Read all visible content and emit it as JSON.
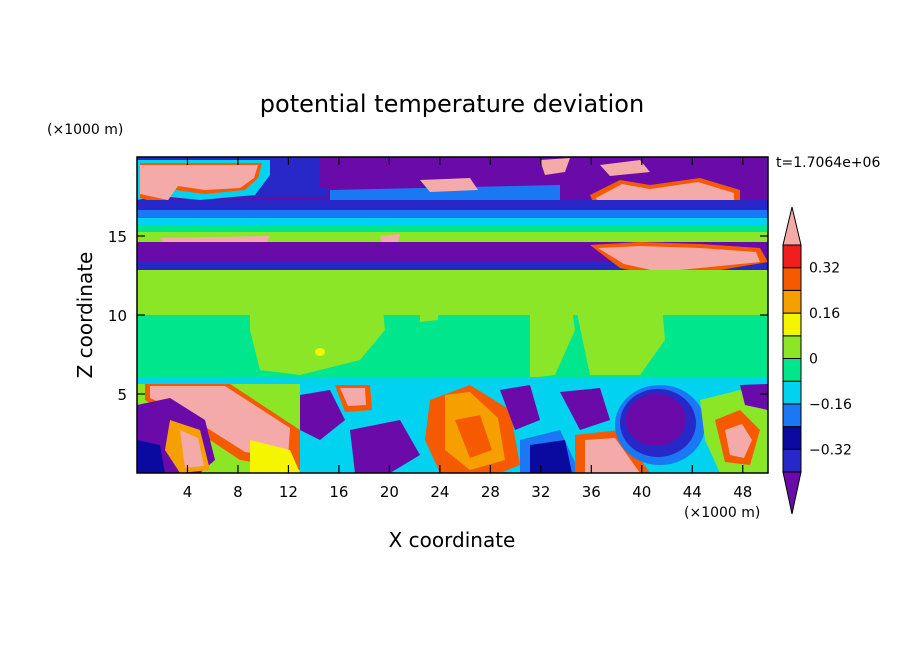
{
  "chart_data": {
    "type": "heatmap",
    "title": "potential temperature deviation",
    "time_label": "t=1.7064e+06",
    "xlabel": "X coordinate",
    "ylabel": "Z coordinate",
    "x_unit": "(×1000 m)",
    "y_unit": "(×1000 m)",
    "xlim": [
      0,
      50
    ],
    "ylim": [
      0,
      20
    ],
    "x_ticks": [
      4,
      8,
      12,
      16,
      20,
      24,
      28,
      32,
      36,
      40,
      44,
      48
    ],
    "y_ticks": [
      5,
      10,
      15
    ],
    "x_tick_labels": [
      "4",
      "8",
      "12",
      "16",
      "20",
      "24",
      "28",
      "32",
      "36",
      "40",
      "44",
      "48"
    ],
    "y_tick_labels": [
      "5",
      "10",
      "15"
    ],
    "colorbar": {
      "levels": [
        -0.4,
        -0.32,
        -0.24,
        -0.16,
        -0.08,
        0,
        0.08,
        0.16,
        0.24,
        0.32,
        0.4
      ],
      "colors": [
        "#6a0aa8",
        "#2828c8",
        "#0a0aa0",
        "#1a78f5",
        "#00d2f0",
        "#00e68c",
        "#8ce628",
        "#f5f500",
        "#f5a000",
        "#f55a00",
        "#f01e1e",
        "#f5aaaa"
      ],
      "labels": [
        "0.32",
        "0.16",
        "0",
        "−0.16",
        "−0.32"
      ],
      "label_values": [
        0.32,
        0.16,
        0,
        -0.16,
        -0.32
      ],
      "extend": "both"
    },
    "bands": [
      {
        "z": [
          0,
          5.7
        ],
        "value": "mixed"
      },
      {
        "z": [
          5.7,
          12.5
        ],
        "value": 0.0
      },
      {
        "z": [
          12.5,
          14.3
        ],
        "value": -0.36
      },
      {
        "z": [
          14.3,
          15.2
        ],
        "value": 0.04
      },
      {
        "z": [
          15.2,
          16.8
        ],
        "value": -0.1
      },
      {
        "z": [
          16.8,
          20
        ],
        "value": "mixed"
      }
    ]
  }
}
